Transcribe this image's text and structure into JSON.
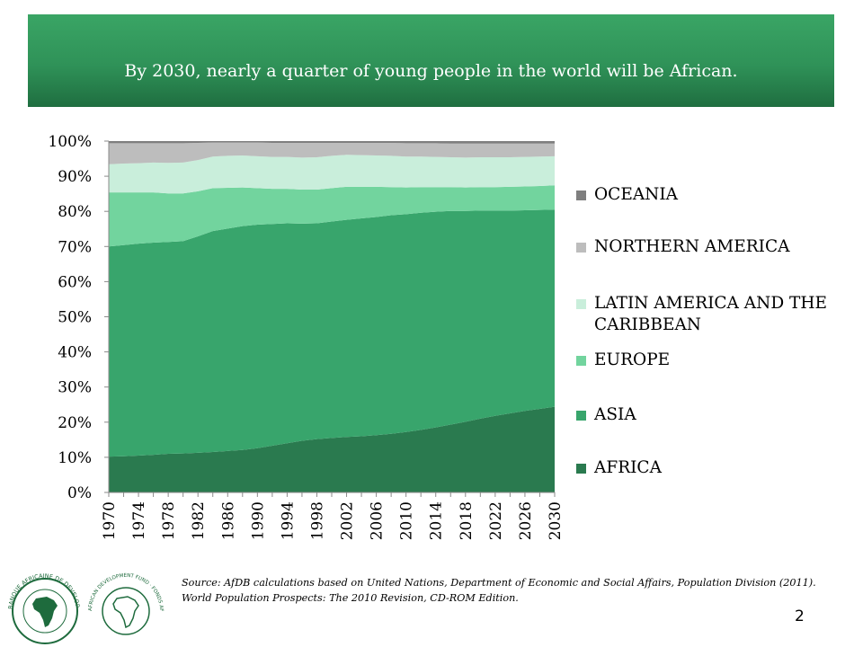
{
  "header": {
    "title": "By 2030, nearly a quarter of young people in the world will be African."
  },
  "chart_data": {
    "type": "area",
    "stacked": true,
    "percent": true,
    "x": [
      1970,
      1972,
      1974,
      1976,
      1978,
      1980,
      1982,
      1984,
      1986,
      1988,
      1990,
      1992,
      1994,
      1996,
      1998,
      2000,
      2002,
      2004,
      2006,
      2008,
      2010,
      2012,
      2014,
      2016,
      2018,
      2020,
      2022,
      2024,
      2026,
      2028,
      2030
    ],
    "x_tick_labels": [
      "1970",
      "1974",
      "1978",
      "1982",
      "1986",
      "1990",
      "1994",
      "1998",
      "2002",
      "2006",
      "2010",
      "2014",
      "2018",
      "2022",
      "2026",
      "2030"
    ],
    "ylim": [
      0,
      100
    ],
    "y_tick_labels": [
      "0%",
      "10%",
      "20%",
      "30%",
      "40%",
      "50%",
      "60%",
      "70%",
      "80%",
      "90%",
      "100%"
    ],
    "grid": false,
    "legend_position": "right",
    "series": [
      {
        "name": "AFRICA",
        "color": "#2a7a4f",
        "values": [
          10.2,
          10.3,
          10.5,
          10.7,
          11.0,
          11.1,
          11.3,
          11.5,
          11.8,
          12.1,
          12.6,
          13.3,
          14.0,
          14.7,
          15.2,
          15.5,
          15.8,
          16.0,
          16.3,
          16.7,
          17.2,
          17.8,
          18.5,
          19.3,
          20.1,
          21.0,
          21.8,
          22.5,
          23.2,
          23.8,
          24.4
        ]
      },
      {
        "name": "ASIA",
        "color": "#38a56c",
        "values": [
          59.8,
          60.1,
          60.3,
          60.4,
          60.3,
          60.4,
          61.6,
          62.9,
          63.3,
          63.7,
          63.6,
          63.1,
          62.6,
          61.8,
          61.4,
          61.6,
          61.8,
          62.0,
          62.1,
          62.2,
          62.0,
          61.8,
          61.4,
          60.8,
          60.0,
          59.2,
          58.4,
          57.7,
          57.1,
          56.6,
          56.1
        ]
      },
      {
        "name": "EUROPE",
        "color": "#72d49e",
        "values": [
          15.4,
          15.0,
          14.6,
          14.3,
          13.8,
          13.6,
          12.8,
          12.2,
          11.6,
          11.0,
          10.4,
          10.0,
          9.8,
          9.7,
          9.6,
          9.5,
          9.4,
          9.0,
          8.6,
          8.0,
          7.6,
          7.3,
          7.0,
          6.8,
          6.7,
          6.7,
          6.7,
          6.8,
          6.8,
          6.8,
          6.9
        ]
      },
      {
        "name": "LATIN AMERICA AND THE CARIBBEAN",
        "color": "#c9eedb",
        "values": [
          8.0,
          8.2,
          8.3,
          8.5,
          8.7,
          8.8,
          8.9,
          9.0,
          9.1,
          9.1,
          9.1,
          9.1,
          9.1,
          9.1,
          9.2,
          9.2,
          9.1,
          9.0,
          8.9,
          8.9,
          8.8,
          8.7,
          8.6,
          8.5,
          8.5,
          8.5,
          8.5,
          8.4,
          8.4,
          8.4,
          8.3
        ]
      },
      {
        "name": "NORTHERN AMERICA",
        "color": "#bdbdbd",
        "values": [
          6.0,
          5.8,
          5.7,
          5.5,
          5.6,
          5.5,
          4.9,
          4.0,
          3.8,
          3.7,
          3.9,
          4.0,
          4.0,
          4.2,
          4.1,
          3.7,
          3.4,
          3.5,
          3.6,
          3.7,
          3.8,
          3.8,
          3.9,
          3.9,
          4.0,
          3.9,
          3.9,
          3.9,
          3.8,
          3.7,
          3.6
        ]
      },
      {
        "name": "OCEANIA",
        "color": "#7f7f7f",
        "values": [
          0.6,
          0.6,
          0.6,
          0.6,
          0.6,
          0.6,
          0.5,
          0.4,
          0.4,
          0.4,
          0.4,
          0.5,
          0.5,
          0.5,
          0.5,
          0.5,
          0.5,
          0.5,
          0.5,
          0.5,
          0.6,
          0.6,
          0.6,
          0.7,
          0.7,
          0.7,
          0.7,
          0.7,
          0.7,
          0.7,
          0.7
        ]
      }
    ]
  },
  "legend_order": [
    "OCEANIA",
    "NORTHERN AMERICA",
    "LATIN AMERICA AND THE CARIBBEAN",
    "EUROPE",
    "ASIA",
    "AFRICA"
  ],
  "source": "Source: AfDB calculations based on United Nations, Department of Economic and Social Affairs, Population Division (2011). World Population Prospects: The 2010 Revision, CD-ROM Edition.",
  "page_number": "2",
  "logos": {
    "left_text": "BANQUE AFRICAINE DE DEVELOPPEMENT",
    "right_text": "AFRICAN DEVELOPMENT FUND · FONDS AFRICAIN DE DEVELOPPEMENT",
    "color": "#1e6b3d"
  }
}
